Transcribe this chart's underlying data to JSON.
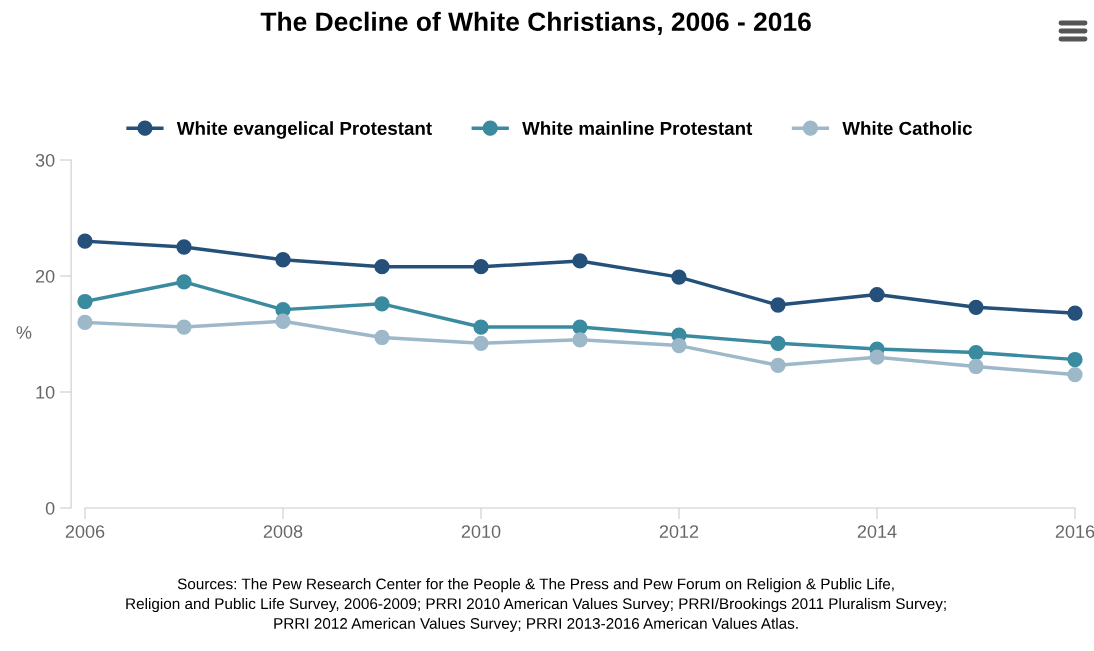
{
  "chart_data": {
    "type": "line",
    "title": "The Decline of White Christians, 2006 - 2016",
    "ylabel": "%",
    "x": [
      2006,
      2007,
      2008,
      2009,
      2010,
      2011,
      2012,
      2013,
      2014,
      2015,
      2016
    ],
    "series": [
      {
        "name": "White evangelical Protestant",
        "color": "#25507a",
        "values": [
          23.0,
          22.5,
          21.4,
          20.8,
          20.8,
          21.3,
          19.9,
          17.5,
          18.4,
          17.3,
          16.8
        ]
      },
      {
        "name": "White mainline Protestant",
        "color": "#3a8aa0",
        "values": [
          17.8,
          19.5,
          17.1,
          17.6,
          15.6,
          15.6,
          14.9,
          14.2,
          13.7,
          13.4,
          12.8
        ]
      },
      {
        "name": "White Catholic",
        "color": "#9db8c8",
        "values": [
          16.0,
          15.6,
          16.1,
          14.7,
          14.2,
          14.5,
          14.0,
          12.3,
          13.0,
          12.2,
          11.5
        ]
      }
    ],
    "xlim": [
      2006,
      2016
    ],
    "xticks": [
      2006,
      2008,
      2010,
      2012,
      2014,
      2016
    ],
    "ylim": [
      0,
      30
    ],
    "yticks": [
      0,
      10,
      20,
      30
    ],
    "grid": false,
    "legend": "top",
    "marker": "circle",
    "line_style": "solid",
    "annotations": [
      "Sources: The Pew Research Center for the People & The Press and Pew Forum on Religion & Public Life,\nReligion and Public Life Survey, 2006-2009; PRRI 2010 American Values Survey; PRRI/Brookings 2011 Pluralism Survey;\nPRRI 2012 American Values Survey; PRRI 2013-2016 American Values Atlas."
    ]
  }
}
